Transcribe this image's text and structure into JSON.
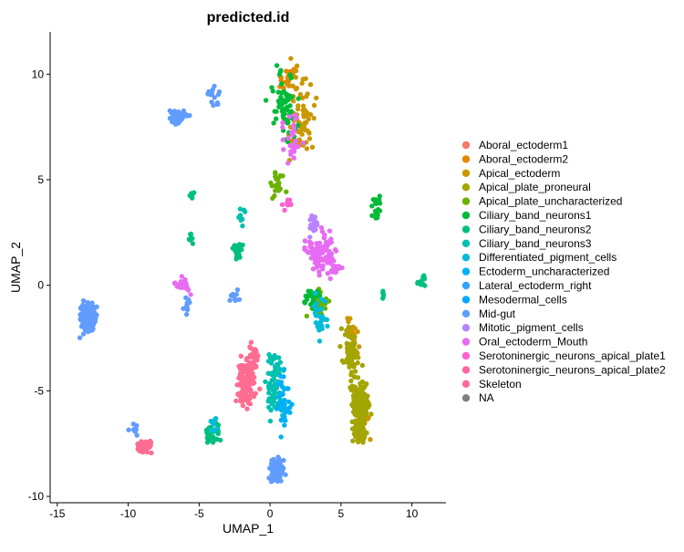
{
  "chart_data": {
    "type": "scatter",
    "title": "predicted.id",
    "xlabel": "UMAP_1",
    "ylabel": "UMAP_2",
    "xlim": [
      -15.5,
      12.4
    ],
    "ylim": [
      -10.3,
      12
    ],
    "x_ticks": [
      -15,
      -10,
      -5,
      0,
      5,
      10
    ],
    "y_ticks": [
      -10,
      -5,
      0,
      5,
      10
    ],
    "x_tick_labels": [
      "-15",
      "-10",
      "-5",
      "0",
      "5",
      "10"
    ],
    "y_tick_labels": [
      "-10",
      "-5",
      "0",
      "5",
      "10"
    ],
    "grid": false,
    "legend_position": "right",
    "series": [
      {
        "name": "Aboral_ectoderm1",
        "color": "#F8766D",
        "clusters": []
      },
      {
        "name": "Aboral_ectoderm2",
        "color": "#E58700",
        "clusters": [
          {
            "center": [
              1.2,
              9.8
            ],
            "spread": [
              0.6,
              0.7
            ],
            "count": 25
          }
        ]
      },
      {
        "name": "Apical_ectoderm",
        "color": "#C99800",
        "clusters": [
          {
            "center": [
              2.0,
              8.0
            ],
            "spread": [
              1.2,
              2.0
            ],
            "count": 80
          },
          {
            "center": [
              6.5,
              -6.0
            ],
            "spread": [
              0.6,
              1.0
            ],
            "count": 40
          },
          {
            "center": [
              5.8,
              -2.5
            ],
            "spread": [
              0.5,
              1.0
            ],
            "count": 30
          }
        ]
      },
      {
        "name": "Apical_plate_proneural",
        "color": "#A3A500",
        "clusters": [
          {
            "center": [
              6.3,
              -5.5
            ],
            "spread": [
              0.6,
              1.1
            ],
            "count": 160
          },
          {
            "center": [
              5.6,
              -3.0
            ],
            "spread": [
              0.5,
              1.2
            ],
            "count": 60
          },
          {
            "center": [
              6.3,
              -7.0
            ],
            "spread": [
              0.5,
              0.5
            ],
            "count": 40
          }
        ]
      },
      {
        "name": "Apical_plate_uncharacterized",
        "color": "#6BB100",
        "clusters": [
          {
            "center": [
              3.5,
              -1.0
            ],
            "spread": [
              0.7,
              0.6
            ],
            "count": 40
          },
          {
            "center": [
              0.5,
              4.8
            ],
            "spread": [
              0.6,
              0.6
            ],
            "count": 20
          }
        ]
      },
      {
        "name": "Ciliary_band_neurons1",
        "color": "#00BA38",
        "clusters": [
          {
            "center": [
              1.0,
              8.5
            ],
            "spread": [
              1.0,
              1.5
            ],
            "count": 60
          },
          {
            "center": [
              7.5,
              3.6
            ],
            "spread": [
              0.4,
              0.5
            ],
            "count": 18
          },
          {
            "center": [
              3.0,
              -0.6
            ],
            "spread": [
              0.8,
              0.6
            ],
            "count": 30
          }
        ]
      },
      {
        "name": "Ciliary_band_neurons2",
        "color": "#00BF7D",
        "clusters": [
          {
            "center": [
              -4.0,
              -7.0
            ],
            "spread": [
              0.5,
              0.4
            ],
            "count": 35
          },
          {
            "center": [
              -2.3,
              1.6
            ],
            "spread": [
              0.5,
              0.6
            ],
            "count": 25
          },
          {
            "center": [
              -5.5,
              4.2
            ],
            "spread": [
              0.2,
              0.2
            ],
            "count": 8
          },
          {
            "center": [
              -5.6,
              2.2
            ],
            "spread": [
              0.2,
              0.3
            ],
            "count": 8
          },
          {
            "center": [
              10.8,
              0.2
            ],
            "spread": [
              0.3,
              0.3
            ],
            "count": 12
          },
          {
            "center": [
              8.0,
              -0.5
            ],
            "spread": [
              0.2,
              0.2
            ],
            "count": 5
          }
        ]
      },
      {
        "name": "Ciliary_band_neurons3",
        "color": "#00C0AF",
        "clusters": [
          {
            "center": [
              0.3,
              -4.5
            ],
            "spread": [
              0.6,
              1.6
            ],
            "count": 70
          },
          {
            "center": [
              -2.0,
              3.2
            ],
            "spread": [
              0.2,
              0.5
            ],
            "count": 10
          }
        ]
      },
      {
        "name": "Differentiated_pigment_cells",
        "color": "#00BCD8",
        "clusters": [
          {
            "center": [
              3.5,
              -1.5
            ],
            "spread": [
              0.5,
              0.8
            ],
            "count": 30
          },
          {
            "center": [
              -4.0,
              -6.5
            ],
            "spread": [
              0.3,
              0.3
            ],
            "count": 10
          }
        ]
      },
      {
        "name": "Ectoderm_uncharacterized",
        "color": "#00B0F6",
        "clusters": [
          {
            "center": [
              1.0,
              -5.5
            ],
            "spread": [
              0.5,
              1.2
            ],
            "count": 40
          }
        ]
      },
      {
        "name": "Lateral_ectoderm_right",
        "color": "#35A2FF",
        "clusters": []
      },
      {
        "name": "Mesodermal_cells",
        "color": "#00A9FF",
        "clusters": []
      },
      {
        "name": "Mid-gut",
        "color": "#619CFF",
        "clusters": [
          {
            "center": [
              -12.8,
              -1.6
            ],
            "spread": [
              0.5,
              0.6
            ],
            "count": 200
          },
          {
            "center": [
              -6.5,
              8.0
            ],
            "spread": [
              0.6,
              0.3
            ],
            "count": 60
          },
          {
            "center": [
              0.5,
              -8.8
            ],
            "spread": [
              0.5,
              0.6
            ],
            "count": 70
          },
          {
            "center": [
              -4.0,
              8.8
            ],
            "spread": [
              0.4,
              0.6
            ],
            "count": 15
          },
          {
            "center": [
              -9.5,
              -6.8
            ],
            "spread": [
              0.4,
              0.3
            ],
            "count": 10
          },
          {
            "center": [
              -2.5,
              -0.5
            ],
            "spread": [
              0.3,
              0.3
            ],
            "count": 10
          },
          {
            "center": [
              -5.8,
              -1.0
            ],
            "spread": [
              0.3,
              0.4
            ],
            "count": 10
          }
        ]
      },
      {
        "name": "Mitotic_pigment_cells",
        "color": "#B983FF",
        "clusters": [
          {
            "center": [
              3.0,
              3.0
            ],
            "spread": [
              0.4,
              0.5
            ],
            "count": 20
          }
        ]
      },
      {
        "name": "Oral_ectoderm_Mouth",
        "color": "#E76BF3",
        "clusters": [
          {
            "center": [
              3.5,
              1.5
            ],
            "spread": [
              1.0,
              0.9
            ],
            "count": 100
          },
          {
            "center": [
              1.5,
              7.0
            ],
            "spread": [
              0.7,
              1.2
            ],
            "count": 30
          },
          {
            "center": [
              -6.2,
              0.0
            ],
            "spread": [
              0.6,
              0.3
            ],
            "count": 20
          },
          {
            "center": [
              4.5,
              0.8
            ],
            "spread": [
              0.6,
              0.4
            ],
            "count": 20
          }
        ]
      },
      {
        "name": "Serotoninergic_neurons_apical_plate1",
        "color": "#FD61D1",
        "clusters": [
          {
            "center": [
              1.3,
              3.8
            ],
            "spread": [
              0.3,
              0.3
            ],
            "count": 10
          }
        ]
      },
      {
        "name": "Serotoninergic_neurons_apical_plate2",
        "color": "#FF67A4",
        "clusters": []
      },
      {
        "name": "Skeleton",
        "color": "#FF6C91",
        "clusters": [
          {
            "center": [
              -1.6,
              -4.5
            ],
            "spread": [
              0.6,
              1.0
            ],
            "count": 150
          },
          {
            "center": [
              -8.8,
              -7.6
            ],
            "spread": [
              0.5,
              0.3
            ],
            "count": 60
          },
          {
            "center": [
              -1.0,
              -3.2
            ],
            "spread": [
              0.4,
              0.4
            ],
            "count": 20
          }
        ]
      },
      {
        "name": "NA",
        "color": "#7F7F7F",
        "clusters": []
      }
    ]
  }
}
